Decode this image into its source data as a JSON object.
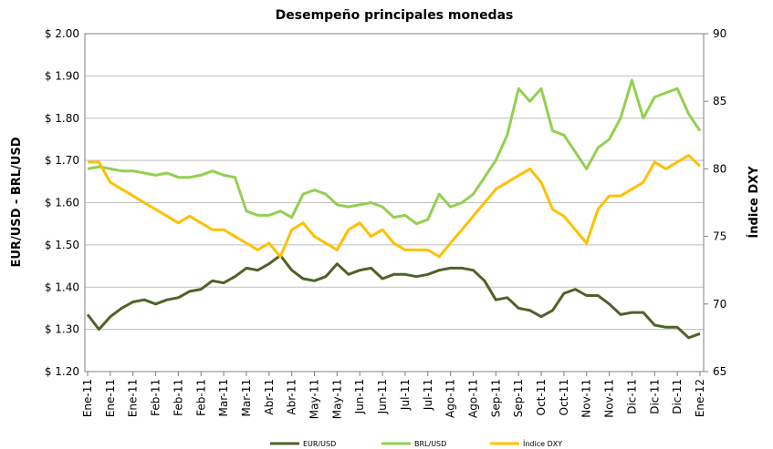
{
  "chart_data": {
    "type": "line",
    "title": "Desempeño principales monedas",
    "y_label": "EUR/USD - BRL/USD",
    "y2_label": "Índice DXY",
    "categories": [
      "Ene-11",
      null,
      "Ene-11",
      null,
      "Ene-11",
      null,
      "Feb-11",
      null,
      "Feb-11",
      null,
      "Feb-11",
      null,
      "Mar-11",
      null,
      "Mar-11",
      null,
      "Abr-11",
      null,
      "Abr-11",
      null,
      "May-11",
      null,
      "May-11",
      null,
      "Jun-11",
      null,
      "Jun-11",
      null,
      "Jul-11",
      null,
      "Jul-11",
      null,
      "Ago-11",
      null,
      "Ago-11",
      null,
      "Sep-11",
      null,
      "Sep-11",
      null,
      "Oct-11",
      null,
      "Oct-11",
      null,
      "Nov-11",
      null,
      "Nov-11",
      null,
      "Dic-11",
      null,
      "Dic-11",
      null,
      "Dic-11",
      null,
      "Ene-12"
    ],
    "series": [
      {
        "name": "EUR/USD",
        "color": "#4f6228",
        "values": [
          1.335,
          1.3,
          1.33,
          1.35,
          1.365,
          1.37,
          1.36,
          1.37,
          1.375,
          1.39,
          1.395,
          1.415,
          1.41,
          1.425,
          1.445,
          1.44,
          1.455,
          1.475,
          1.44,
          1.42,
          1.415,
          1.425,
          1.455,
          1.43,
          1.44,
          1.445,
          1.42,
          1.43,
          1.43,
          1.425,
          1.43,
          1.44,
          1.445,
          1.445,
          1.44,
          1.415,
          1.37,
          1.375,
          1.35,
          1.345,
          1.33,
          1.345,
          1.385,
          1.395,
          1.38,
          1.38,
          1.36,
          1.335,
          1.34,
          1.34,
          1.31,
          1.305,
          1.305,
          1.28,
          1.29
        ]
      },
      {
        "name": "BRL/USD",
        "color": "#92d050",
        "values": [
          1.68,
          1.685,
          1.68,
          1.675,
          1.675,
          1.67,
          1.665,
          1.67,
          1.66,
          1.66,
          1.665,
          1.675,
          1.665,
          1.66,
          1.58,
          1.57,
          1.57,
          1.58,
          1.565,
          1.62,
          1.63,
          1.62,
          1.595,
          1.59,
          1.595,
          1.6,
          1.59,
          1.565,
          1.57,
          1.55,
          1.56,
          1.62,
          1.59,
          1.6,
          1.62,
          1.66,
          1.7,
          1.76,
          1.87,
          1.84,
          1.87,
          1.77,
          1.76,
          1.72,
          1.68,
          1.73,
          1.75,
          1.8,
          1.89,
          1.8,
          1.85,
          1.86,
          1.87,
          1.81,
          1.77
        ]
      },
      {
        "name": "Índice DXY",
        "color": "#ffc000",
        "axis": "y2",
        "values": [
          80.5,
          80.5,
          79,
          78.5,
          78,
          77.5,
          77,
          76.5,
          76,
          76.5,
          76,
          75.5,
          75.5,
          75,
          74.5,
          74,
          74.5,
          73.5,
          75.5,
          76,
          75,
          74.5,
          74,
          75.5,
          76,
          75,
          75.5,
          74.5,
          74,
          74,
          74,
          73.5,
          74.5,
          75.5,
          76.5,
          77.5,
          78.5,
          79,
          79.5,
          80,
          79,
          77,
          76.5,
          75.5,
          74.5,
          77,
          78,
          78,
          78.5,
          79,
          80.5,
          80,
          80.5,
          81,
          80.2
        ]
      }
    ],
    "ylim": [
      1.2,
      2.0
    ],
    "yticks": [
      {
        "value": 1.2,
        "label": "$ 1.20"
      },
      {
        "value": 1.3,
        "label": "$ 1.30"
      },
      {
        "value": 1.4,
        "label": "$ 1.40"
      },
      {
        "value": 1.5,
        "label": "$ 1.50"
      },
      {
        "value": 1.6,
        "label": "$ 1.60"
      },
      {
        "value": 1.7,
        "label": "$ 1.70"
      },
      {
        "value": 1.8,
        "label": "$ 1.80"
      },
      {
        "value": 1.9,
        "label": "$ 1.90"
      },
      {
        "value": 2.0,
        "label": "$ 2.00"
      }
    ],
    "y2lim": [
      65,
      90
    ],
    "y2ticks": [
      65,
      70,
      75,
      80,
      85,
      90
    ],
    "grid": true,
    "legend": "bottom"
  }
}
